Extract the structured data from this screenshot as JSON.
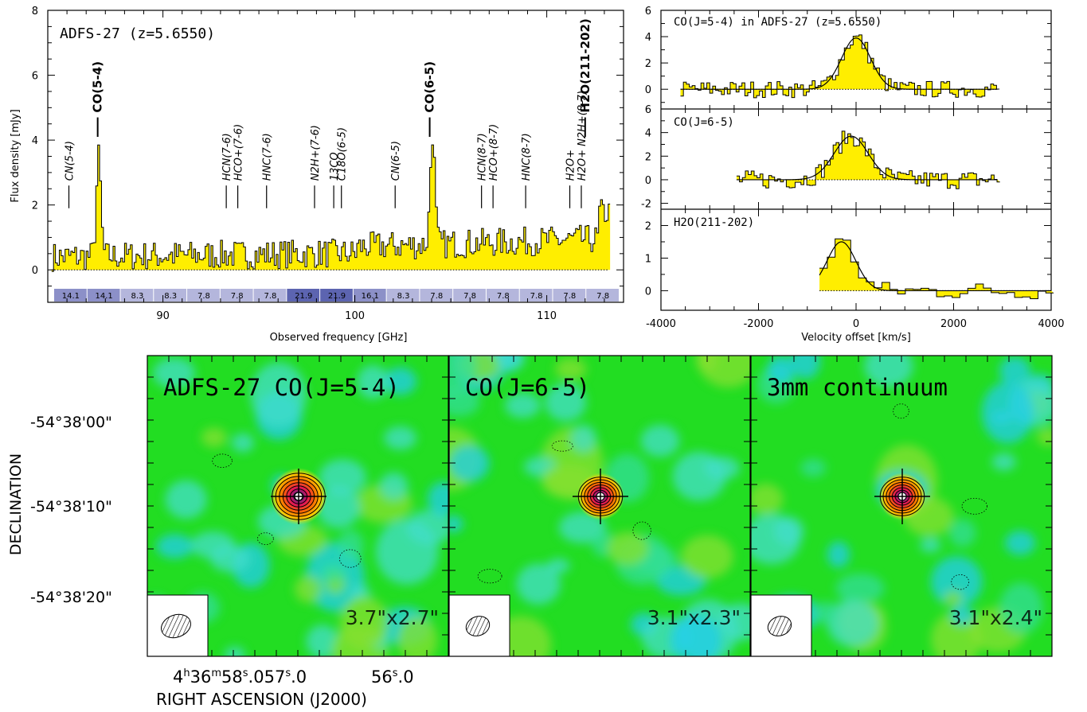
{
  "colors": {
    "fill": "#ffee00",
    "bar_dark": "#5c64b0",
    "bar_mid": "#8c90c8",
    "bar_light": "#b4b6dc",
    "map_bg": "#22dd22"
  },
  "chart_data": [
    {
      "type": "line",
      "panel": "main-spectrum",
      "title": "ADFS-27 (z=5.6550)",
      "xlabel": "Observed frequency [GHz]",
      "ylabel": "Flux density [mJy]",
      "xlim": [
        84,
        114
      ],
      "ylim": [
        -1.0,
        8
      ],
      "xticks": [
        90,
        100,
        110
      ],
      "yticks": [
        0,
        2,
        4,
        6,
        8
      ],
      "peaks": [
        {
          "x": 86.6,
          "y": 3.45
        },
        {
          "x": 104.0,
          "y": 3.85
        }
      ],
      "lines": [
        {
          "label": "CN(5-4)",
          "x": 85.1,
          "bold": false
        },
        {
          "label": "CO(5-4)",
          "x": 86.6,
          "bold": true
        },
        {
          "label": "HCN(7-6)",
          "x": 93.3,
          "bold": false
        },
        {
          "label": "HCO+(7-6)",
          "x": 93.9,
          "bold": false
        },
        {
          "label": "HNC(7-6)",
          "x": 95.4,
          "bold": false
        },
        {
          "label": "N2H+(7-6)",
          "x": 97.9,
          "bold": false
        },
        {
          "label": "13CO",
          "x": 98.9,
          "bold": false
        },
        {
          "label": "C18O(6-5)",
          "x": 99.3,
          "bold": false
        },
        {
          "label": "CN(6-5)",
          "x": 102.1,
          "bold": false
        },
        {
          "label": "CO(6-5)",
          "x": 103.9,
          "bold": true
        },
        {
          "label": "HCN(8-7)",
          "x": 106.6,
          "bold": false
        },
        {
          "label": "HCO+(8-7)",
          "x": 107.2,
          "bold": false
        },
        {
          "label": "HNC(8-7)",
          "x": 108.9,
          "bold": false
        },
        {
          "label": "H2O+",
          "x": 111.2,
          "bold": false
        },
        {
          "label": "H2O+ N2H+(8-7)",
          "x": 111.8,
          "bold": false
        },
        {
          "label": "H2O(211-202)",
          "x": 112.0,
          "bold": true
        }
      ],
      "bands": [
        "14.1",
        "14.1",
        "8.3",
        "8.3",
        "7.8",
        "7.8",
        "7.8",
        "21.9",
        "21.9",
        "16.1",
        "8.3",
        "7.8",
        "7.8",
        "7.8",
        "7.8",
        "7.8",
        "7.8"
      ]
    },
    {
      "type": "line",
      "panel": "velocity-co54",
      "title": "CO(J=5-4) in ADFS-27 (z=5.6550)",
      "xlim": [
        -4000,
        4000
      ],
      "ylim": [
        -1.5,
        6
      ],
      "yticks": [
        0,
        2,
        4,
        6
      ],
      "gaussian": {
        "amp": 3.9,
        "center": 0,
        "fwhm": 700
      }
    },
    {
      "type": "line",
      "panel": "velocity-co65",
      "title": "CO(J=6-5)",
      "xlim": [
        -4000,
        4000
      ],
      "ylim": [
        -2.5,
        6
      ],
      "yticks": [
        -2,
        0,
        2,
        4,
        6
      ],
      "gaussian": {
        "amp": 3.7,
        "center": -100,
        "fwhm": 820
      }
    },
    {
      "type": "line",
      "panel": "velocity-h2o",
      "title": "H2O(211-202)",
      "xlabel": "Velocity offset [km/s]",
      "xlim": [
        -4000,
        4000
      ],
      "ylim": [
        -0.6,
        2.5
      ],
      "yticks": [
        0,
        1,
        2
      ],
      "xticks": [
        -4000,
        -2000,
        0,
        2000,
        4000
      ],
      "gaussian": {
        "amp": 1.5,
        "center": -300,
        "fwhm": 700
      }
    },
    {
      "type": "heatmap",
      "panel": "maps",
      "xlabel": "RIGHT ASCENSION (J2000)",
      "ylabel": "DECLINATION",
      "yticks": [
        "-54°38'00\"",
        "-54°38'10\"",
        "-54°38'20\""
      ],
      "maps": [
        {
          "title": "ADFS-27 CO(J=5-4)",
          "beam": "3.7\"x2.7\""
        },
        {
          "title": "CO(J=6-5)",
          "beam": "3.1\"x2.3\""
        },
        {
          "title": "3mm continuum",
          "beam": "3.1\"x2.4\""
        }
      ]
    }
  ]
}
